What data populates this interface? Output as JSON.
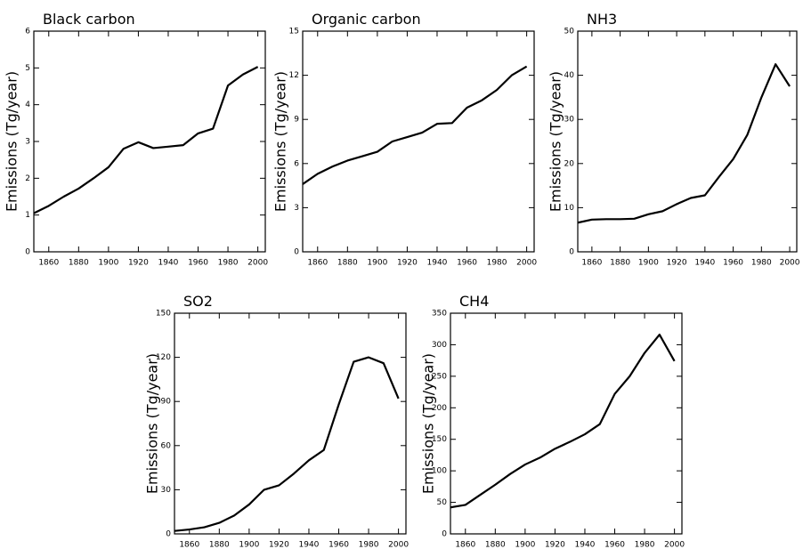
{
  "chart_data": [
    {
      "type": "line",
      "title": "Black carbon",
      "y_label": "Emissions (Tg/year)",
      "x": [
        1850,
        1860,
        1870,
        1880,
        1890,
        1900,
        1910,
        1920,
        1930,
        1940,
        1950,
        1960,
        1970,
        1980,
        1990,
        2000
      ],
      "values": [
        1.05,
        1.25,
        1.5,
        1.72,
        2.0,
        2.3,
        2.8,
        2.98,
        2.82,
        2.86,
        2.9,
        3.22,
        3.35,
        4.52,
        4.82,
        5.03
      ],
      "color": "#000000",
      "xlim": [
        1850,
        2005
      ],
      "ylim": [
        0,
        6
      ],
      "xticks": [
        1860,
        1880,
        1900,
        1920,
        1940,
        1960,
        1980,
        2000
      ],
      "yticks": [
        0,
        1,
        2,
        3,
        4,
        5,
        6
      ]
    },
    {
      "type": "line",
      "title": "Organic carbon",
      "y_label": "Emissions (Tg/year)",
      "x": [
        1850,
        1860,
        1870,
        1880,
        1890,
        1900,
        1910,
        1920,
        1930,
        1940,
        1950,
        1960,
        1970,
        1980,
        1990,
        2000
      ],
      "values": [
        4.6,
        5.3,
        5.8,
        6.2,
        6.5,
        6.8,
        7.5,
        7.8,
        8.1,
        8.7,
        8.75,
        9.8,
        10.3,
        11.0,
        12.0,
        12.6
      ],
      "color": "#000000",
      "xlim": [
        1850,
        2005
      ],
      "ylim": [
        0,
        15
      ],
      "xticks": [
        1860,
        1880,
        1900,
        1920,
        1940,
        1960,
        1980,
        2000
      ],
      "yticks": [
        0,
        3,
        6,
        9,
        12,
        15
      ]
    },
    {
      "type": "line",
      "title": "NH3",
      "y_label": "Emissions (Tg/year)",
      "x": [
        1850,
        1860,
        1870,
        1880,
        1890,
        1900,
        1910,
        1920,
        1930,
        1940,
        1950,
        1960,
        1970,
        1980,
        1990,
        2000
      ],
      "values": [
        6.6,
        7.3,
        7.4,
        7.4,
        7.5,
        8.5,
        9.2,
        10.8,
        12.2,
        12.8,
        17,
        21,
        26.5,
        35,
        42.5,
        37.5
      ],
      "color": "#000000",
      "xlim": [
        1850,
        2005
      ],
      "ylim": [
        0,
        50
      ],
      "xticks": [
        1860,
        1880,
        1900,
        1920,
        1940,
        1960,
        1980,
        2000
      ],
      "yticks": [
        0,
        10,
        20,
        30,
        40,
        50
      ]
    },
    {
      "type": "line",
      "title": "SO2",
      "y_label": "Emissions (Tg/year)",
      "x": [
        1850,
        1860,
        1870,
        1880,
        1890,
        1900,
        1910,
        1920,
        1930,
        1940,
        1950,
        1960,
        1970,
        1980,
        1990,
        2000
      ],
      "values": [
        2,
        3,
        4.5,
        7.5,
        12.5,
        20,
        30,
        33,
        41,
        50,
        57,
        88,
        117,
        120,
        116,
        92
      ],
      "color": "#000000",
      "xlim": [
        1850,
        2005
      ],
      "ylim": [
        0,
        150
      ],
      "xticks": [
        1860,
        1880,
        1900,
        1920,
        1940,
        1960,
        1980,
        2000
      ],
      "yticks": [
        0,
        30,
        60,
        90,
        120,
        150
      ]
    },
    {
      "type": "line",
      "title": "CH4",
      "y_label": "Emissions (Tg/year)",
      "x": [
        1850,
        1860,
        1870,
        1880,
        1890,
        1900,
        1910,
        1920,
        1930,
        1940,
        1950,
        1960,
        1970,
        1980,
        1990,
        2000
      ],
      "values": [
        42,
        46,
        62,
        78,
        95,
        110,
        121,
        135,
        146,
        158,
        174,
        222,
        250,
        287,
        316,
        274
      ],
      "color": "#000000",
      "xlim": [
        1850,
        2005
      ],
      "ylim": [
        0,
        350
      ],
      "xticks": [
        1860,
        1880,
        1900,
        1920,
        1940,
        1960,
        1980,
        2000
      ],
      "yticks": [
        0,
        50,
        100,
        150,
        200,
        250,
        300,
        350
      ]
    }
  ]
}
